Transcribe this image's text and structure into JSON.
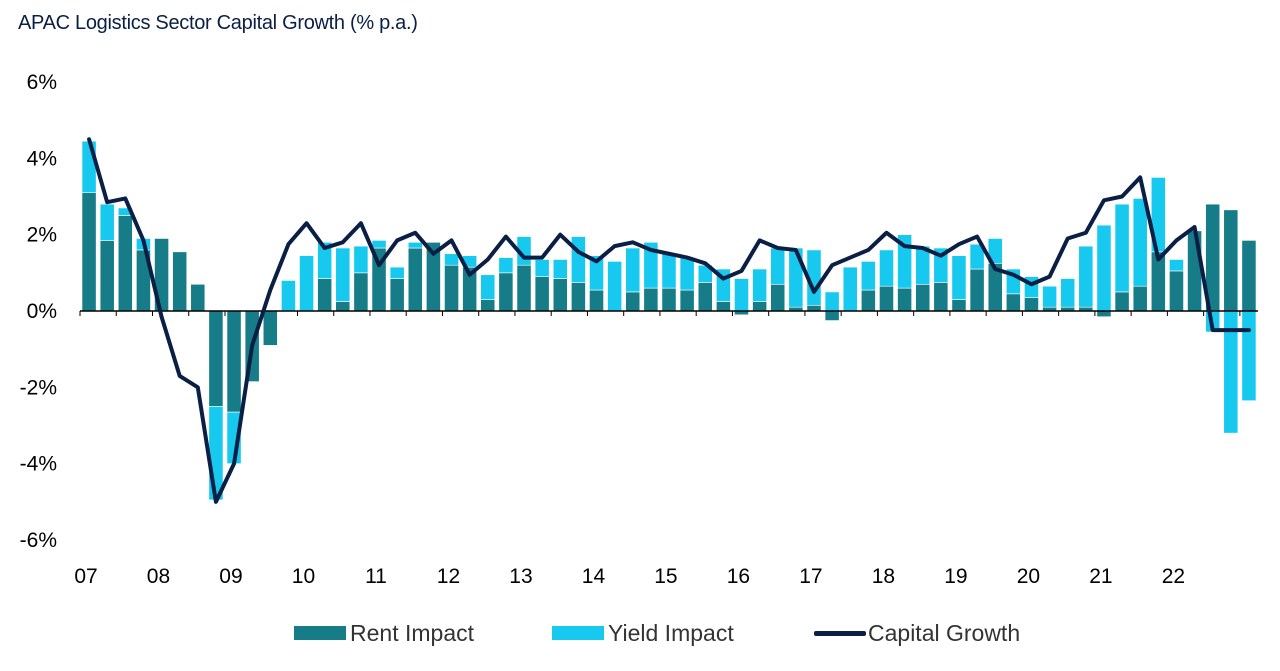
{
  "chart_data": {
    "type": "bar",
    "title": "APAC Logistics Sector Capital Growth (% p.a.)",
    "xlabel": "",
    "ylabel": "",
    "ylim": [
      -6,
      6
    ],
    "ytick_values": [
      6,
      4,
      2,
      0,
      -2,
      -4,
      -6
    ],
    "ytick_labels": [
      "6%",
      "4%",
      "2%",
      "0%",
      "-2%",
      "-4%",
      "-6%"
    ],
    "xtick_labels": [
      "07",
      "08",
      "09",
      "10",
      "11",
      "12",
      "13",
      "14",
      "15",
      "16",
      "17",
      "18",
      "19",
      "20",
      "21",
      "22"
    ],
    "periods_per_year": 4,
    "stacked": true,
    "grid": false,
    "legend_position": "bottom",
    "colors": {
      "rent": "#167c88",
      "yield": "#17c8ef",
      "capital": "#0b1f45"
    },
    "series": [
      {
        "name": "Rent Impact",
        "type": "bar",
        "values": [
          3.1,
          1.85,
          2.5,
          1.6,
          1.9,
          1.55,
          0.7,
          -2.5,
          -2.65,
          -1.85,
          -0.9,
          0.0,
          0.0,
          0.85,
          0.25,
          1.0,
          1.65,
          0.85,
          1.65,
          1.8,
          1.2,
          1.15,
          0.3,
          1.0,
          1.2,
          0.9,
          0.85,
          0.75,
          0.55,
          0.0,
          0.5,
          0.6,
          0.6,
          0.55,
          0.75,
          0.25,
          -0.1,
          0.25,
          0.7,
          0.1,
          0.15,
          -0.25,
          0.0,
          0.55,
          0.65,
          0.6,
          0.7,
          0.75,
          0.3,
          1.1,
          1.25,
          0.45,
          0.35,
          0.1,
          0.1,
          0.1,
          -0.15,
          0.5,
          0.65,
          1.55,
          1.05,
          2.1,
          2.8,
          2.65,
          1.85
        ]
      },
      {
        "name": "Yield Impact",
        "type": "bar",
        "values": [
          1.35,
          0.95,
          0.2,
          0.3,
          0.0,
          0.0,
          0.0,
          -2.45,
          -1.35,
          0.0,
          0.0,
          0.8,
          1.45,
          0.95,
          1.4,
          0.7,
          0.2,
          0.3,
          0.15,
          0.0,
          0.3,
          0.3,
          0.65,
          0.4,
          0.75,
          0.45,
          0.5,
          1.2,
          0.9,
          1.3,
          1.15,
          1.2,
          0.9,
          0.85,
          0.45,
          0.85,
          0.85,
          0.85,
          0.95,
          1.55,
          1.45,
          0.5,
          1.15,
          0.75,
          0.95,
          1.4,
          1.0,
          0.9,
          1.15,
          0.65,
          0.65,
          0.65,
          0.55,
          0.55,
          0.75,
          1.6,
          2.25,
          2.3,
          2.3,
          1.95,
          0.3,
          0.0,
          -0.55,
          -3.2,
          -2.35
        ]
      },
      {
        "name": "Capital Growth",
        "type": "line",
        "values": [
          4.5,
          2.85,
          2.95,
          1.85,
          -0.15,
          -1.7,
          -2.0,
          -5.0,
          -4.0,
          -0.9,
          0.55,
          1.75,
          2.3,
          1.65,
          1.8,
          2.3,
          1.2,
          1.85,
          2.05,
          1.5,
          1.85,
          0.95,
          1.35,
          1.95,
          1.4,
          1.4,
          2.0,
          1.55,
          1.3,
          1.7,
          1.8,
          1.6,
          1.5,
          1.4,
          1.25,
          0.85,
          1.05,
          1.85,
          1.65,
          1.6,
          0.5,
          1.2,
          1.4,
          1.6,
          2.05,
          1.7,
          1.65,
          1.45,
          1.75,
          1.95,
          1.1,
          0.95,
          0.7,
          0.9,
          1.9,
          2.05,
          2.9,
          3.0,
          3.5,
          1.35,
          1.85,
          2.2,
          -0.5,
          -0.5,
          -0.5
        ]
      }
    ]
  }
}
